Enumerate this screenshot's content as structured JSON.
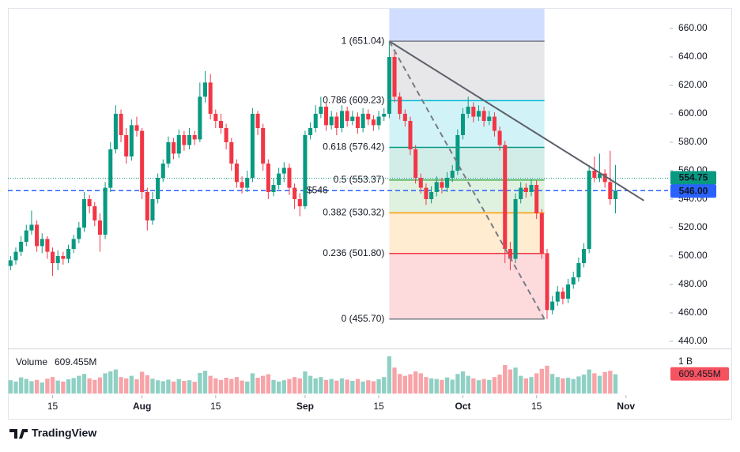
{
  "chart_data": {
    "type": "candlestick",
    "up_color": "#089981",
    "down_color": "#f23645",
    "xlim": [
      -0.5,
      125
    ],
    "xticks": [
      {
        "value": 8,
        "label": "15"
      },
      {
        "value": 25,
        "label": "Aug"
      },
      {
        "value": 39,
        "label": "15"
      },
      {
        "value": 56,
        "label": "Sep"
      },
      {
        "value": 70,
        "label": "15"
      },
      {
        "value": 86,
        "label": "Oct"
      },
      {
        "value": 100,
        "label": "15"
      },
      {
        "value": 117,
        "label": "Nov"
      }
    ],
    "ylim": [
      435.56,
      674.44
    ],
    "yticks": [
      {
        "value": 440,
        "label": "440.00"
      },
      {
        "value": 460,
        "label": "460.00"
      },
      {
        "value": 480,
        "label": "480.00"
      },
      {
        "value": 500,
        "label": "500.00"
      },
      {
        "value": 520,
        "label": "520.00"
      },
      {
        "value": 540,
        "label": "540.00"
      },
      {
        "value": 560,
        "label": "560.00"
      },
      {
        "value": 580,
        "label": "580.00"
      },
      {
        "value": 600,
        "label": "600.00"
      },
      {
        "value": 620,
        "label": "620.00"
      },
      {
        "value": 640,
        "label": "640.00"
      },
      {
        "value": 660,
        "label": "660.00"
      }
    ],
    "ohlc": [
      [
        493,
        500,
        490,
        497
      ],
      [
        497,
        506,
        494,
        503
      ],
      [
        503,
        514,
        500,
        510
      ],
      [
        510,
        522,
        507,
        518
      ],
      [
        518,
        532,
        515,
        522
      ],
      [
        522,
        525,
        503,
        507
      ],
      [
        507,
        516,
        502,
        512
      ],
      [
        512,
        514,
        498,
        503
      ],
      [
        503,
        506,
        486,
        495
      ],
      [
        495,
        504,
        490,
        500
      ],
      [
        500,
        503,
        494,
        498
      ],
      [
        498,
        508,
        495,
        505
      ],
      [
        505,
        515,
        502,
        512
      ],
      [
        512,
        524,
        509,
        520
      ],
      [
        520,
        545,
        517,
        540
      ],
      [
        540,
        543,
        530,
        535
      ],
      [
        535,
        538,
        521,
        525
      ],
      [
        525,
        530,
        503,
        515
      ],
      [
        515,
        552,
        512,
        548
      ],
      [
        548,
        580,
        545,
        575
      ],
      [
        575,
        606,
        572,
        600
      ],
      [
        600,
        603,
        580,
        585
      ],
      [
        585,
        590,
        565,
        570
      ],
      [
        570,
        596,
        567,
        592
      ],
      [
        592,
        598,
        584,
        588
      ],
      [
        588,
        590,
        540,
        545
      ],
      [
        545,
        548,
        518,
        525
      ],
      [
        525,
        545,
        522,
        540
      ],
      [
        540,
        558,
        537,
        555
      ],
      [
        555,
        568,
        552,
        565
      ],
      [
        565,
        584,
        562,
        580
      ],
      [
        580,
        583,
        568,
        572
      ],
      [
        572,
        589,
        569,
        585
      ],
      [
        585,
        588,
        574,
        578
      ],
      [
        578,
        590,
        575,
        585
      ],
      [
        585,
        588,
        578,
        582
      ],
      [
        582,
        622,
        580,
        612
      ],
      [
        612,
        630,
        608,
        622
      ],
      [
        622,
        628,
        596,
        600
      ],
      [
        600,
        603,
        590,
        595
      ],
      [
        595,
        600,
        586,
        590
      ],
      [
        590,
        593,
        575,
        580
      ],
      [
        580,
        583,
        560,
        565
      ],
      [
        565,
        568,
        548,
        552
      ],
      [
        552,
        556,
        544,
        548
      ],
      [
        548,
        560,
        545,
        555
      ],
      [
        555,
        604,
        552,
        600
      ],
      [
        600,
        602,
        585,
        590
      ],
      [
        590,
        593,
        560,
        565
      ],
      [
        565,
        568,
        540,
        545
      ],
      [
        545,
        555,
        542,
        550
      ],
      [
        550,
        562,
        547,
        558
      ],
      [
        558,
        566,
        552,
        562
      ],
      [
        562,
        565,
        543,
        548
      ],
      [
        548,
        551,
        533,
        540
      ],
      [
        540,
        544,
        528,
        535
      ],
      [
        535,
        588,
        533,
        585
      ],
      [
        585,
        594,
        582,
        590
      ],
      [
        590,
        606,
        587,
        600
      ],
      [
        600,
        612,
        597,
        605
      ],
      [
        605,
        608,
        588,
        592
      ],
      [
        592,
        602,
        589,
        598
      ],
      [
        598,
        601,
        585,
        590
      ],
      [
        590,
        606,
        587,
        602
      ],
      [
        602,
        605,
        591,
        595
      ],
      [
        595,
        602,
        592,
        598
      ],
      [
        598,
        601,
        586,
        590
      ],
      [
        590,
        604,
        587,
        600
      ],
      [
        600,
        603,
        592,
        596
      ],
      [
        596,
        599,
        588,
        592
      ],
      [
        592,
        602,
        589,
        598
      ],
      [
        598,
        604,
        595,
        600
      ],
      [
        600,
        651.04,
        597,
        640
      ],
      [
        640,
        643,
        608,
        612
      ],
      [
        612,
        615,
        596,
        600
      ],
      [
        600,
        603,
        591,
        595
      ],
      [
        595,
        598,
        571,
        575
      ],
      [
        575,
        578,
        551,
        555
      ],
      [
        555,
        558,
        544,
        548
      ],
      [
        548,
        551,
        536,
        540
      ],
      [
        540,
        549,
        537,
        545
      ],
      [
        545,
        556,
        542,
        552
      ],
      [
        552,
        555,
        544,
        548
      ],
      [
        548,
        559,
        545,
        555
      ],
      [
        555,
        564,
        552,
        560
      ],
      [
        560,
        589,
        557,
        585
      ],
      [
        585,
        604,
        582,
        600
      ],
      [
        600,
        612,
        597,
        605
      ],
      [
        605,
        608,
        594,
        598
      ],
      [
        598,
        606,
        595,
        602
      ],
      [
        602,
        605,
        591,
        595
      ],
      [
        595,
        602,
        592,
        598
      ],
      [
        598,
        601,
        584,
        588
      ],
      [
        588,
        591,
        574,
        578
      ],
      [
        578,
        581,
        495,
        505
      ],
      [
        505,
        510,
        490,
        498
      ],
      [
        498,
        544,
        495,
        540
      ],
      [
        540,
        552,
        537,
        548
      ],
      [
        548,
        551,
        541,
        545
      ],
      [
        545,
        554,
        542,
        550
      ],
      [
        550,
        553,
        526,
        530
      ],
      [
        530,
        533,
        498,
        502
      ],
      [
        502,
        505,
        455.7,
        462
      ],
      [
        462,
        472,
        459,
        468
      ],
      [
        468,
        479,
        465,
        475
      ],
      [
        475,
        478,
        466,
        470
      ],
      [
        470,
        484,
        467,
        480
      ],
      [
        480,
        489,
        477,
        485
      ],
      [
        485,
        499,
        482,
        495
      ],
      [
        495,
        509,
        492,
        505
      ],
      [
        505,
        564,
        502,
        560
      ],
      [
        560,
        570,
        552,
        555
      ],
      [
        555,
        572,
        552,
        558
      ],
      [
        558,
        561,
        548,
        552
      ],
      [
        552,
        574,
        536,
        540
      ],
      [
        540,
        564,
        530,
        546
      ]
    ],
    "fib": {
      "x_range": [
        72,
        101.5
      ],
      "levels": [
        {
          "value": 651.04,
          "label": "1 (651.04)",
          "color": "#787b86"
        },
        {
          "value": 609.23,
          "label": "0.786 (609.23)",
          "color": "#00bcd4"
        },
        {
          "value": 576.42,
          "label": "0.618 (576.42)",
          "color": "#089981"
        },
        {
          "value": 553.37,
          "label": "0.5 (553.37)",
          "color": "#4caf50"
        },
        {
          "value": 530.32,
          "label": "0.382 (530.32)",
          "color": "#ff9800"
        },
        {
          "value": 501.8,
          "label": "0.236 (501.80)",
          "color": "#f23645"
        },
        {
          "value": 455.7,
          "label": "0 (455.70)",
          "color": "#787b86"
        }
      ]
    },
    "trendline": {
      "x": [
        72,
        120.4
      ],
      "y": [
        651.04,
        539
      ],
      "color": "#5d606b"
    },
    "dashed_line": {
      "x": [
        72,
        101.5
      ],
      "y": [
        651.04,
        455.7
      ],
      "color": "#787b86"
    },
    "hline": {
      "value": 546,
      "label": "$546",
      "color": "#2962ff"
    },
    "prev_close": {
      "value": 554.75,
      "label": "554.75",
      "color": "#089981"
    },
    "last_price": {
      "value": 546,
      "label": "546.00",
      "color": "#2962ff"
    },
    "volume": {
      "title": "Volume",
      "last": {
        "value": 609.455,
        "label": "609.455M"
      },
      "ylim": [
        0,
        1400
      ],
      "yticks": [
        {
          "value": 1000,
          "label": "1 B"
        }
      ],
      "values": [
        420,
        380,
        510,
        460,
        390,
        430,
        350,
        470,
        520,
        410,
        380,
        450,
        490,
        560,
        620,
        480,
        430,
        510,
        640,
        700,
        760,
        520,
        480,
        560,
        450,
        690,
        580,
        470,
        420,
        390,
        440,
        380,
        460,
        400,
        420,
        370,
        650,
        720,
        560,
        480,
        430,
        500,
        460,
        520,
        410,
        380,
        640,
        500,
        560,
        610,
        430,
        380,
        420,
        460,
        520,
        480,
        700,
        560,
        480,
        520,
        430,
        460,
        410,
        480,
        440,
        400,
        460,
        380,
        420,
        390,
        450,
        520,
        1180,
        820,
        620,
        560,
        610,
        700,
        640,
        520,
        480,
        460,
        430,
        510,
        440,
        620,
        700,
        560,
        480,
        420,
        460,
        430,
        520,
        600,
        900,
        760,
        820,
        560,
        480,
        520,
        640,
        780,
        880,
        620,
        520,
        480,
        500,
        460,
        540,
        600,
        760,
        640,
        560,
        680,
        720,
        609.455
      ],
      "up_color": "#8fd0c4",
      "down_color": "#f7a3a8"
    },
    "brand": "TradingView"
  }
}
